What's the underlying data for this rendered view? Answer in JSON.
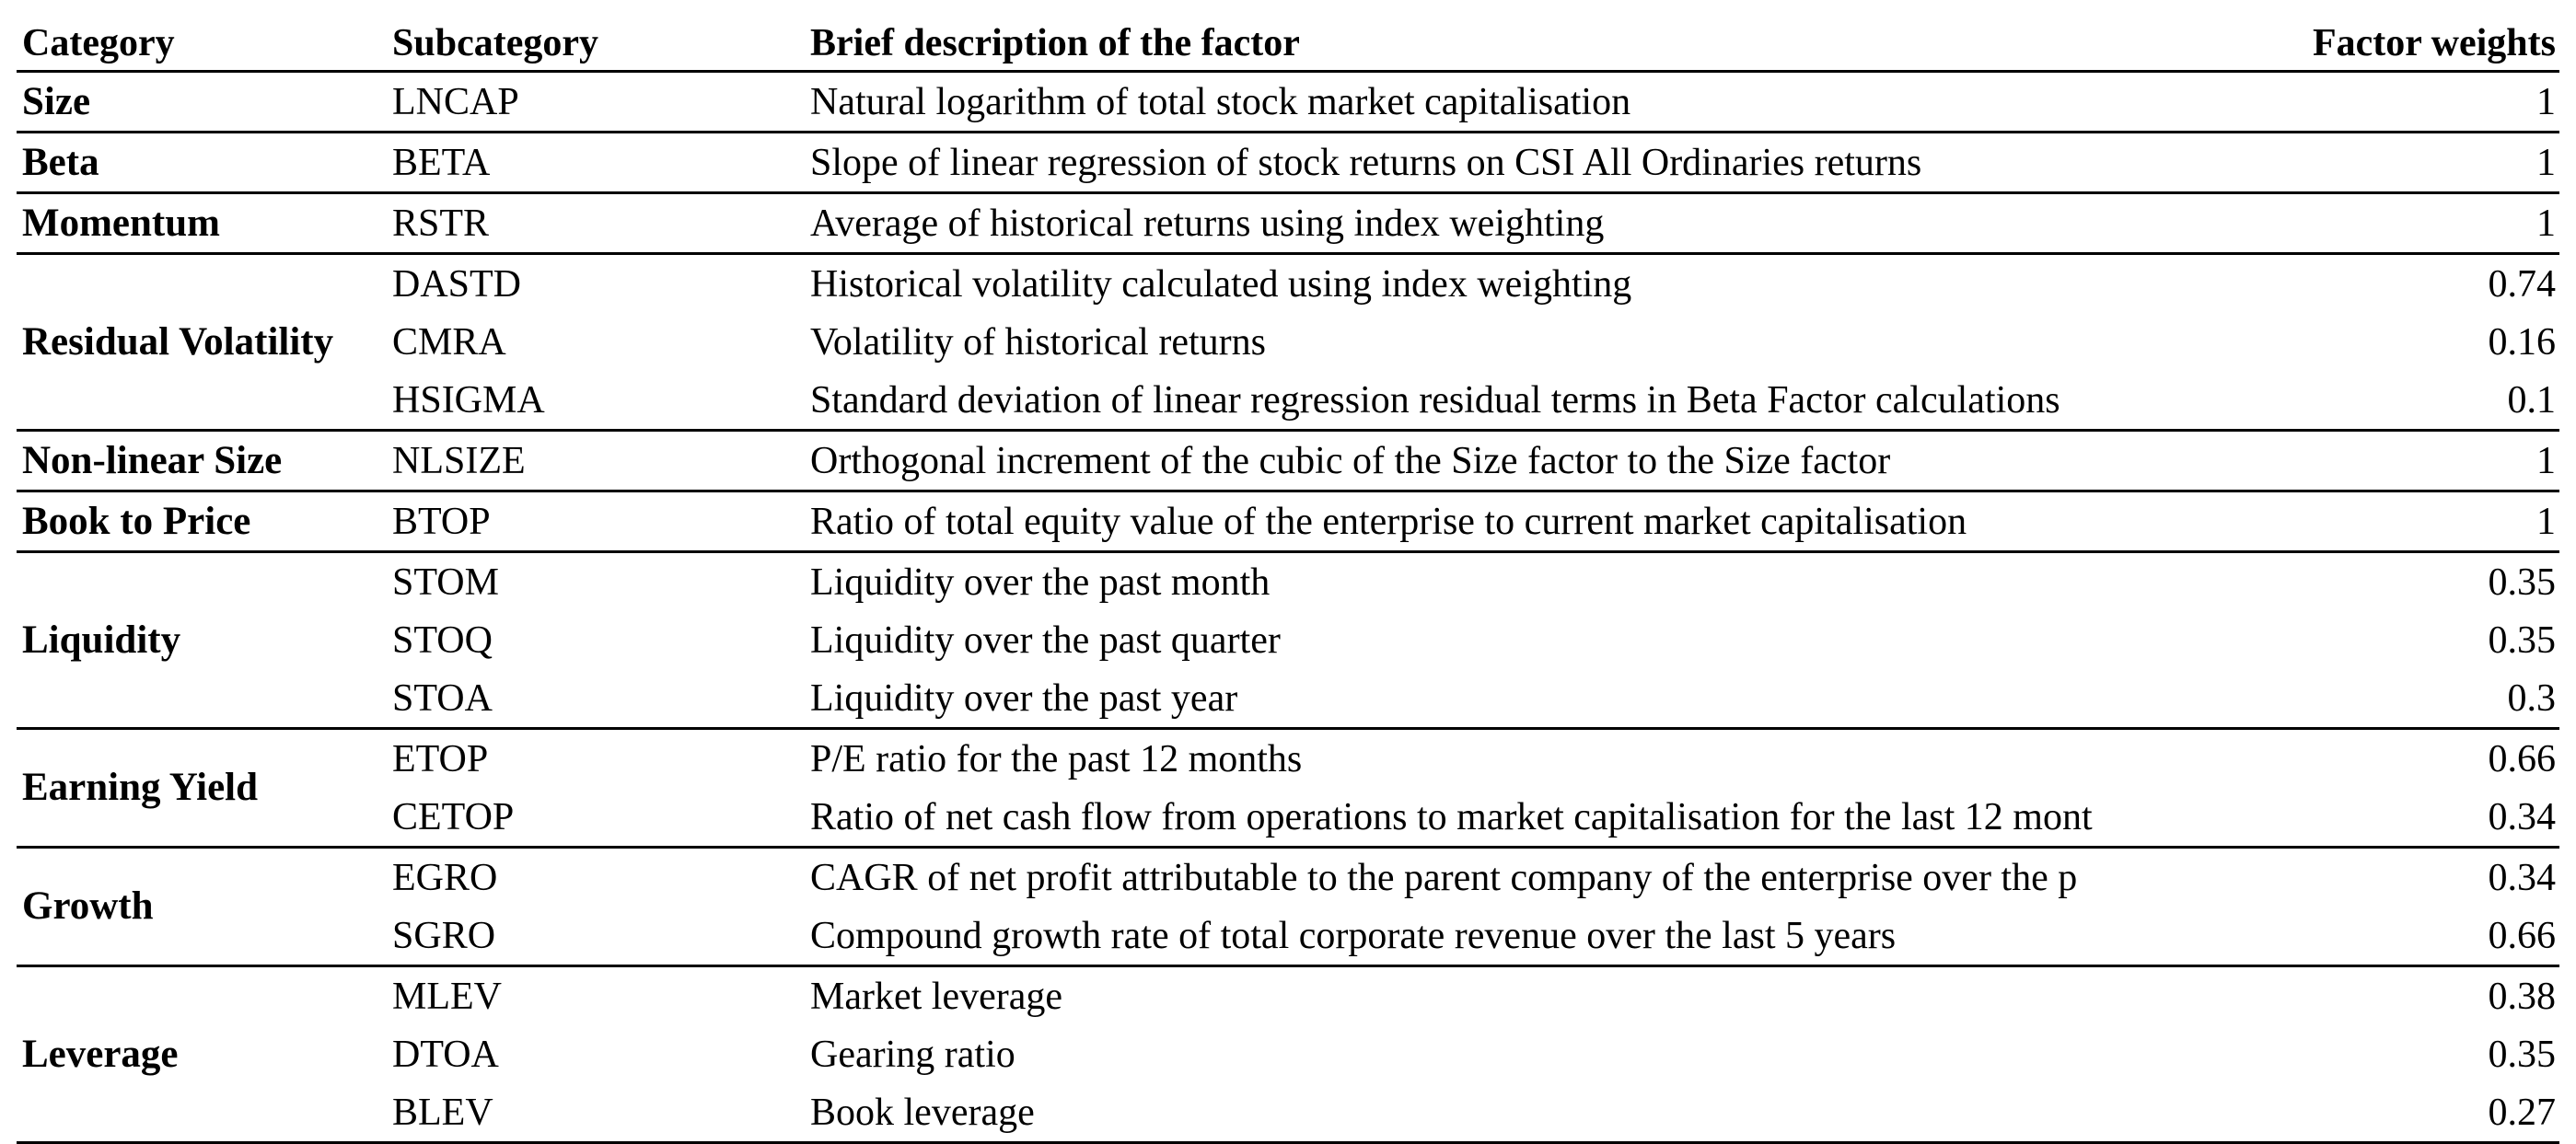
{
  "table": {
    "headers": {
      "category": "Category",
      "subcategory": "Subcategory",
      "description": "Brief description of the factor",
      "weights": "Factor weights"
    },
    "groups": [
      {
        "category": "Size",
        "rows": [
          {
            "sub": "LNCAP",
            "desc": "Natural logarithm of total stock market capitalisation",
            "weight": "1"
          }
        ]
      },
      {
        "category": "Beta",
        "rows": [
          {
            "sub": "BETA",
            "desc": "Slope of linear regression of stock returns on CSI All Ordinaries returns",
            "weight": "1"
          }
        ]
      },
      {
        "category": "Momentum",
        "rows": [
          {
            "sub": "RSTR",
            "desc": "Average of historical returns using index weighting",
            "weight": "1"
          }
        ]
      },
      {
        "category": "Residual Volatility",
        "rows": [
          {
            "sub": "DASTD",
            "desc": "Historical volatility calculated using index weighting",
            "weight": "0.74"
          },
          {
            "sub": "CMRA",
            "desc": "Volatility of historical returns",
            "weight": "0.16"
          },
          {
            "sub": "HSIGMA",
            "desc": "Standard deviation of linear regression residual terms in Beta Factor calculations",
            "weight": "0.1"
          }
        ]
      },
      {
        "category": "Non-linear Size",
        "rows": [
          {
            "sub": "NLSIZE",
            "desc": "Orthogonal increment of the cubic of the Size factor to the Size factor",
            "weight": "1"
          }
        ]
      },
      {
        "category": "Book to Price",
        "rows": [
          {
            "sub": "BTOP",
            "desc": "Ratio of total equity value of the enterprise to current market capitalisation",
            "weight": "1"
          }
        ]
      },
      {
        "category": "Liquidity",
        "rows": [
          {
            "sub": "STOM",
            "desc": "Liquidity over the past month",
            "weight": "0.35"
          },
          {
            "sub": "STOQ",
            "desc": "Liquidity over the past quarter",
            "weight": "0.35"
          },
          {
            "sub": "STOA",
            "desc": "Liquidity over the past year",
            "weight": "0.3"
          }
        ]
      },
      {
        "category": "Earning Yield",
        "rows": [
          {
            "sub": "ETOP",
            "desc": "P/E ratio for the past 12 months",
            "weight": "0.66"
          },
          {
            "sub": "CETOP",
            "desc": "Ratio of net cash flow from operations to market capitalisation for the last 12 mont",
            "weight": "0.34"
          }
        ]
      },
      {
        "category": "Growth",
        "rows": [
          {
            "sub": "EGRO",
            "desc": "CAGR of net profit attributable to the parent company of the enterprise over the p",
            "weight": "0.34"
          },
          {
            "sub": "SGRO",
            "desc": "Compound growth rate of total corporate revenue over the last 5 years",
            "weight": "0.66"
          }
        ]
      },
      {
        "category": "Leverage",
        "rows": [
          {
            "sub": "MLEV",
            "desc": "Market leverage",
            "weight": "0.38"
          },
          {
            "sub": "DTOA",
            "desc": "Gearing ratio",
            "weight": "0.35"
          },
          {
            "sub": "BLEV",
            "desc": "Book leverage",
            "weight": "0.27"
          }
        ]
      }
    ]
  }
}
